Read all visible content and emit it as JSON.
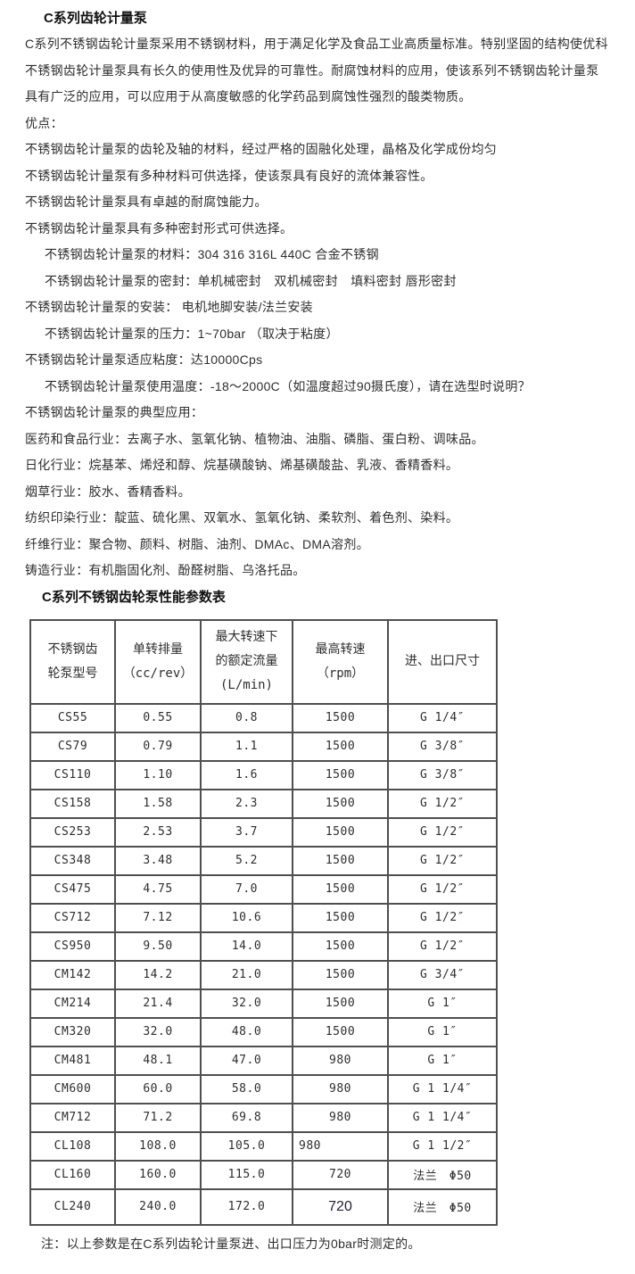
{
  "colors": {
    "text": "#2e2e2e",
    "heading": "#111111",
    "table_border": "#4f4f4f",
    "background": "#ffffff"
  },
  "doc": {
    "title": "C系列齿轮计量泵",
    "intro": "C系列不锈钢齿轮计量泵采用不锈钢材料，用于满足化学及食品工业高质量标准。特别坚固的结构使优科不锈钢齿轮计量泵具有长久的使用性及优异的可靠性。耐腐蚀材料的应用，使该系列不锈钢齿轮计量泵具有广泛的应用，可以应用于从高度敏感的化学药品到腐蚀性强烈的酸类物质。",
    "paragraphs": [
      {
        "text": "优点：",
        "indent": false
      },
      {
        "text": "不锈钢齿轮计量泵的齿轮及轴的材料，经过严格的固融化处理，晶格及化学成份均匀",
        "indent": false
      },
      {
        "text": "不锈钢齿轮计量泵有多种材料可供选择，使该泵具有良好的流体兼容性。",
        "indent": false
      },
      {
        "text": "不锈钢齿轮计量泵具有卓越的耐腐蚀能力。",
        "indent": false
      },
      {
        "text": "不锈钢齿轮计量泵具有多种密封形式可供选择。",
        "indent": false
      },
      {
        "text": "不锈钢齿轮计量泵的材料：304 316 316L 440C 合金不锈钢",
        "indent": true
      },
      {
        "text": "不锈钢齿轮计量泵的密封：单机械密封　双机械密封　填料密封 唇形密封",
        "indent": true
      },
      {
        "text": "不锈钢齿轮计量泵的安装： 电机地脚安装/法兰安装",
        "indent": false
      },
      {
        "text": "不锈钢齿轮计量泵的压力：1~70bar （取决于粘度）",
        "indent": true
      },
      {
        "text": "不锈钢齿轮计量泵适应粘度：达10000Cps",
        "indent": false
      },
      {
        "text": "不锈钢齿轮计量泵使用温度：-18～2000C（如温度超过90摄氏度），请在选型时说明？",
        "indent": true
      },
      {
        "text": "不锈钢齿轮计量泵的典型应用：",
        "indent": false
      },
      {
        "text": "医药和食品行业：去离子水、氢氧化钠、植物油、油脂、磷脂、蛋白粉、调味品。",
        "indent": false
      },
      {
        "text": "日化行业：烷基苯、烯烃和醇、烷基磺酸钠、烯基磺酸盐、乳液、香精香料。",
        "indent": false
      },
      {
        "text": "烟草行业：胶水、香精香料。",
        "indent": false
      },
      {
        "text": "纺织印染行业：靛蓝、硫化黑、双氧水、氢氧化钠、柔软剂、着色剂、染料。",
        "indent": false
      },
      {
        "text": "纤维行业：聚合物、颜料、树脂、油剂、DMAc、DMA溶剂。",
        "indent": false
      },
      {
        "text": "铸造行业：有机脂固化剂、酚醛树脂、乌洛托品。",
        "indent": false
      }
    ],
    "table_title": "C系列不锈钢齿轮泵性能参数表",
    "footnote": "注：以上参数是在C系列齿轮计量泵进、出口压力为0bar时测定的。"
  },
  "table": {
    "headers": [
      {
        "lines": [
          "不锈钢齿",
          "轮泵型号"
        ]
      },
      {
        "lines": [
          "单转排量",
          "（cc/rev）"
        ]
      },
      {
        "lines": [
          "最大转速下",
          "的额定流量",
          "(L/min)"
        ]
      },
      {
        "lines": [
          "最高转速",
          "（rpm）"
        ]
      },
      {
        "lines": [
          "进、出口尺寸"
        ]
      }
    ],
    "rows": [
      {
        "model": "CS55",
        "displacement": "0.55",
        "flow": "0.8",
        "rpm": "1500",
        "port": "G 1/4″"
      },
      {
        "model": "CS79",
        "displacement": "0.79",
        "flow": "1.1",
        "rpm": "1500",
        "port": "G 3/8″"
      },
      {
        "model": "CS110",
        "displacement": "1.10",
        "flow": "1.6",
        "rpm": "1500",
        "port": "G 3/8″"
      },
      {
        "model": "CS158",
        "displacement": "1.58",
        "flow": "2.3",
        "rpm": "1500",
        "port": "G 1/2″"
      },
      {
        "model": "CS253",
        "displacement": "2.53",
        "flow": "3.7",
        "rpm": "1500",
        "port": "G 1/2″"
      },
      {
        "model": "CS348",
        "displacement": "3.48",
        "flow": "5.2",
        "rpm": "1500",
        "port": "G 1/2″"
      },
      {
        "model": "CS475",
        "displacement": "4.75",
        "flow": "7.0",
        "rpm": "1500",
        "port": "G 1/2″"
      },
      {
        "model": "CS712",
        "displacement": "7.12",
        "flow": "10.6",
        "rpm": "1500",
        "port": "G 1/2″"
      },
      {
        "model": "CS950",
        "displacement": "9.50",
        "flow": "14.0",
        "rpm": "1500",
        "port": "G 1/2″"
      },
      {
        "model": "CM142",
        "displacement": "14.2",
        "flow": "21.0",
        "rpm": "1500",
        "port": "G 3/4″"
      },
      {
        "model": "CM214",
        "displacement": "21.4",
        "flow": "32.0",
        "rpm": "1500",
        "port": "G 1″"
      },
      {
        "model": "CM320",
        "displacement": "32.0",
        "flow": "48.0",
        "rpm": "1500",
        "port": "G 1″"
      },
      {
        "model": "CM481",
        "displacement": "48.1",
        "flow": "47.0",
        "rpm": "980",
        "port": "G 1″"
      },
      {
        "model": "CM600",
        "displacement": "60.0",
        "flow": "58.0",
        "rpm": "980",
        "port": "G 1 1/4″"
      },
      {
        "model": "CM712",
        "displacement": "71.2",
        "flow": "69.8",
        "rpm": "980",
        "port": "G 1 1/4″"
      },
      {
        "model": "CL108",
        "displacement": "108.0",
        "flow": "105.0",
        "rpm": "980",
        "port": "G 1 1/2″"
      },
      {
        "model": "CL160",
        "displacement": "160.0",
        "flow": "115.0",
        "rpm": "720",
        "port": "法兰　Φ50"
      },
      {
        "model": "CL240",
        "displacement": "240.0",
        "flow": "172.0",
        "rpm": "720",
        "port": "法兰　Φ50"
      }
    ],
    "quirks": {
      "rpm_left_model": "CL108",
      "rpm_alt_font_model": "CL240",
      "tall_row_model": "CL240"
    }
  }
}
